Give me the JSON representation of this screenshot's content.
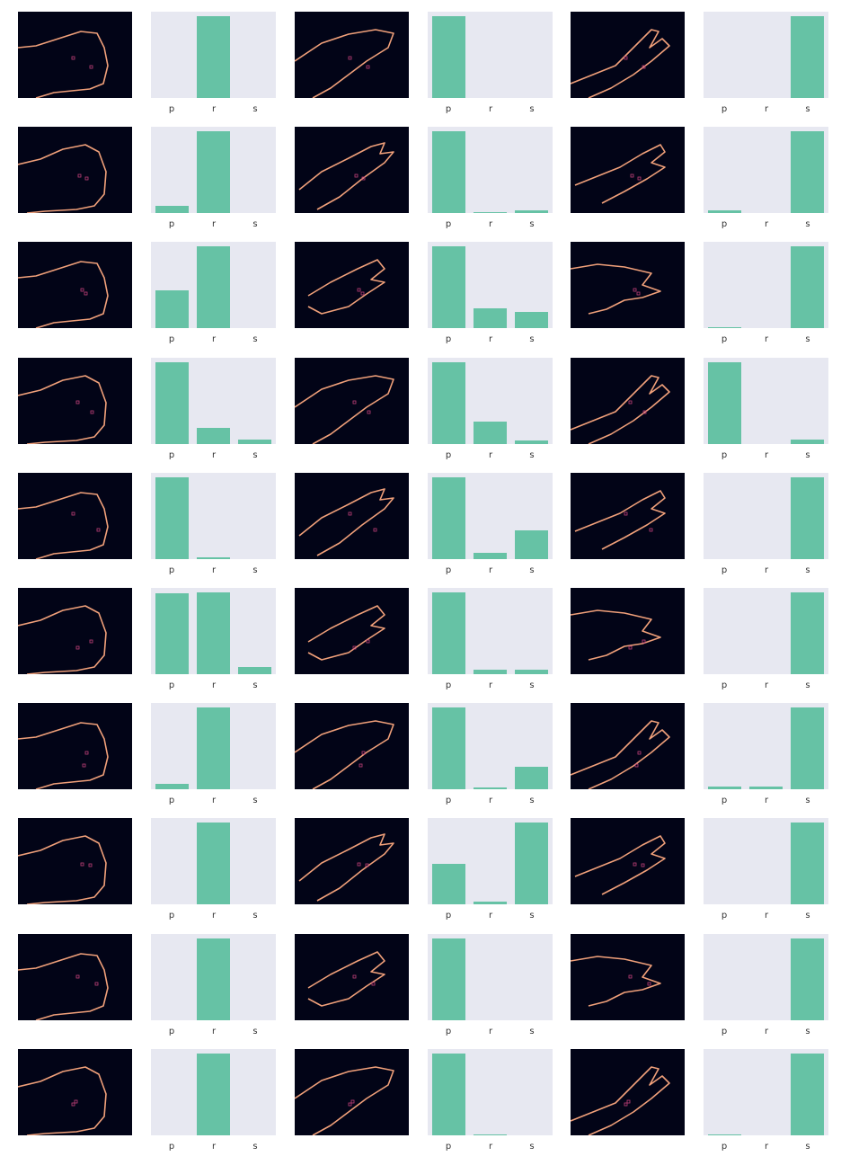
{
  "palette": {
    "edge_bg": "#020417",
    "edge_line": "#f0a07a",
    "bar_bg": "#e7e8f1",
    "bar_fill": "#66c2a5"
  },
  "chart_data": [
    {
      "type": "bar",
      "categories": [
        "p",
        "r",
        "s"
      ],
      "values": [
        0.0,
        1.0,
        0.0
      ],
      "ylim": [
        0,
        1
      ]
    },
    {
      "type": "bar",
      "categories": [
        "p",
        "r",
        "s"
      ],
      "values": [
        1.0,
        0.0,
        0.0
      ],
      "ylim": [
        0,
        1
      ]
    },
    {
      "type": "bar",
      "categories": [
        "p",
        "r",
        "s"
      ],
      "values": [
        0.0,
        0.0,
        1.0
      ],
      "ylim": [
        0,
        1
      ]
    },
    {
      "type": "bar",
      "categories": [
        "p",
        "r",
        "s"
      ],
      "values": [
        0.09,
        1.0,
        0.0
      ],
      "ylim": [
        0,
        1
      ]
    },
    {
      "type": "bar",
      "categories": [
        "p",
        "r",
        "s"
      ],
      "values": [
        1.0,
        0.01,
        0.03
      ],
      "ylim": [
        0,
        1
      ]
    },
    {
      "type": "bar",
      "categories": [
        "p",
        "r",
        "s"
      ],
      "values": [
        0.03,
        0.0,
        1.0
      ],
      "ylim": [
        0,
        1
      ]
    },
    {
      "type": "bar",
      "categories": [
        "p",
        "r",
        "s"
      ],
      "values": [
        0.46,
        1.0,
        0.0
      ],
      "ylim": [
        0,
        1
      ]
    },
    {
      "type": "bar",
      "categories": [
        "p",
        "r",
        "s"
      ],
      "values": [
        1.0,
        0.24,
        0.2
      ],
      "ylim": [
        0,
        1
      ]
    },
    {
      "type": "bar",
      "categories": [
        "p",
        "r",
        "s"
      ],
      "values": [
        0.01,
        0.0,
        1.0
      ],
      "ylim": [
        0,
        1
      ]
    },
    {
      "type": "bar",
      "categories": [
        "p",
        "r",
        "s"
      ],
      "values": [
        1.0,
        0.2,
        0.06
      ],
      "ylim": [
        0,
        1
      ]
    },
    {
      "type": "bar",
      "categories": [
        "p",
        "r",
        "s"
      ],
      "values": [
        1.0,
        0.28,
        0.04
      ],
      "ylim": [
        0,
        1
      ]
    },
    {
      "type": "bar",
      "categories": [
        "p",
        "r",
        "s"
      ],
      "values": [
        1.0,
        0.0,
        0.06
      ],
      "ylim": [
        0,
        1
      ]
    },
    {
      "type": "bar",
      "categories": [
        "p",
        "r",
        "s"
      ],
      "values": [
        1.0,
        0.02,
        0.0
      ],
      "ylim": [
        0,
        1
      ]
    },
    {
      "type": "bar",
      "categories": [
        "p",
        "r",
        "s"
      ],
      "values": [
        1.0,
        0.08,
        0.35
      ],
      "ylim": [
        0,
        1
      ]
    },
    {
      "type": "bar",
      "categories": [
        "p",
        "r",
        "s"
      ],
      "values": [
        0.0,
        0.0,
        1.0
      ],
      "ylim": [
        0,
        1
      ]
    },
    {
      "type": "bar",
      "categories": [
        "p",
        "r",
        "s"
      ],
      "values": [
        0.99,
        1.0,
        0.09
      ],
      "ylim": [
        0,
        1
      ]
    },
    {
      "type": "bar",
      "categories": [
        "p",
        "r",
        "s"
      ],
      "values": [
        1.0,
        0.06,
        0.06
      ],
      "ylim": [
        0,
        1
      ]
    },
    {
      "type": "bar",
      "categories": [
        "p",
        "r",
        "s"
      ],
      "values": [
        0.0,
        0.0,
        1.0
      ],
      "ylim": [
        0,
        1
      ]
    },
    {
      "type": "bar",
      "categories": [
        "p",
        "r",
        "s"
      ],
      "values": [
        0.07,
        1.0,
        0.0
      ],
      "ylim": [
        0,
        1
      ]
    },
    {
      "type": "bar",
      "categories": [
        "p",
        "r",
        "s"
      ],
      "values": [
        1.0,
        0.02,
        0.28
      ],
      "ylim": [
        0,
        1
      ]
    },
    {
      "type": "bar",
      "categories": [
        "p",
        "r",
        "s"
      ],
      "values": [
        0.03,
        0.03,
        1.0
      ],
      "ylim": [
        0,
        1
      ]
    },
    {
      "type": "bar",
      "categories": [
        "p",
        "r",
        "s"
      ],
      "values": [
        0.0,
        1.0,
        0.0
      ],
      "ylim": [
        0,
        1
      ]
    },
    {
      "type": "bar",
      "categories": [
        "p",
        "r",
        "s"
      ],
      "values": [
        0.49,
        0.03,
        1.0
      ],
      "ylim": [
        0,
        1
      ]
    },
    {
      "type": "bar",
      "categories": [
        "p",
        "r",
        "s"
      ],
      "values": [
        0.0,
        0.0,
        1.0
      ],
      "ylim": [
        0,
        1
      ]
    },
    {
      "type": "bar",
      "categories": [
        "p",
        "r",
        "s"
      ],
      "values": [
        0.0,
        1.0,
        0.0
      ],
      "ylim": [
        0,
        1
      ]
    },
    {
      "type": "bar",
      "categories": [
        "p",
        "r",
        "s"
      ],
      "values": [
        1.0,
        0.0,
        0.0
      ],
      "ylim": [
        0,
        1
      ]
    },
    {
      "type": "bar",
      "categories": [
        "p",
        "r",
        "s"
      ],
      "values": [
        0.0,
        0.0,
        1.0
      ],
      "ylim": [
        0,
        1
      ]
    },
    {
      "type": "bar",
      "categories": [
        "p",
        "r",
        "s"
      ],
      "values": [
        0.0,
        1.0,
        0.0
      ],
      "ylim": [
        0,
        1
      ]
    },
    {
      "type": "bar",
      "categories": [
        "p",
        "r",
        "s"
      ],
      "values": [
        1.0,
        0.01,
        0.0
      ],
      "ylim": [
        0,
        1
      ]
    },
    {
      "type": "bar",
      "categories": [
        "p",
        "r",
        "s"
      ],
      "values": [
        0.01,
        0.0,
        1.0
      ],
      "ylim": [
        0,
        1
      ]
    }
  ]
}
